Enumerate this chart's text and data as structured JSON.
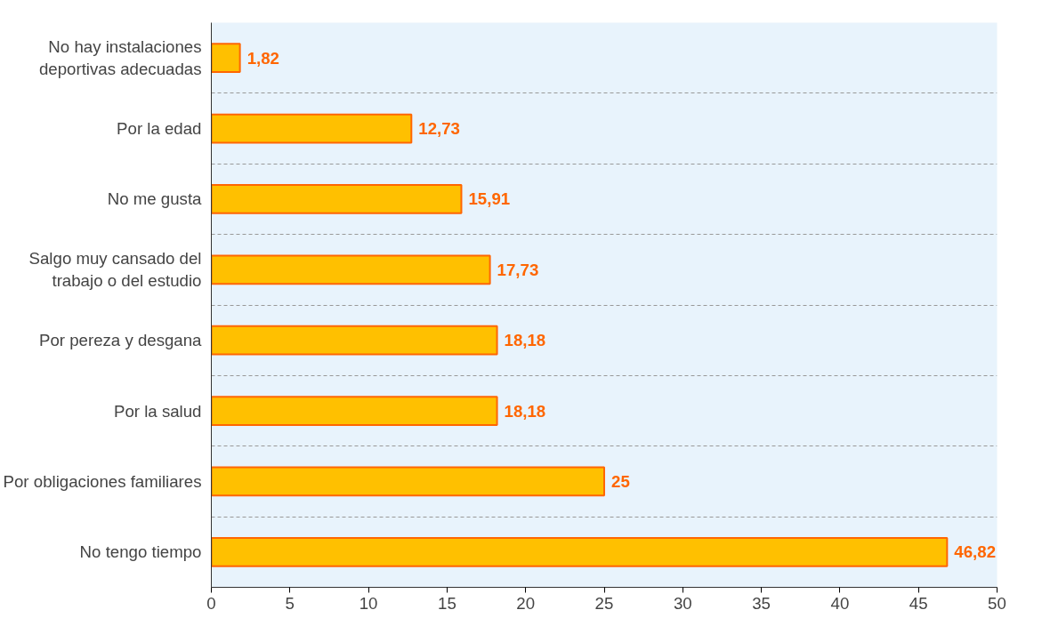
{
  "chart_data": {
    "type": "bar",
    "orientation": "horizontal",
    "categories": [
      "No hay instalaciones deportivas adecuadas",
      "Por la edad",
      "No me gusta",
      "Salgo muy cansado del trabajo o del estudio",
      "Por pereza y desgana",
      "Por la salud",
      "Por obligaciones familiares",
      "No tengo tiempo"
    ],
    "values": [
      1.82,
      12.73,
      15.91,
      17.73,
      18.18,
      18.18,
      25,
      46.82
    ],
    "value_labels": [
      "1,82",
      "12,73",
      "15,91",
      "17,73",
      "18,18",
      "18,18",
      "25",
      "46,82"
    ],
    "color": "#ffc000",
    "xlim": [
      0,
      50
    ],
    "xticks": [
      0,
      5,
      10,
      15,
      20,
      25,
      30,
      35,
      40,
      45,
      50
    ],
    "grid": "y"
  }
}
